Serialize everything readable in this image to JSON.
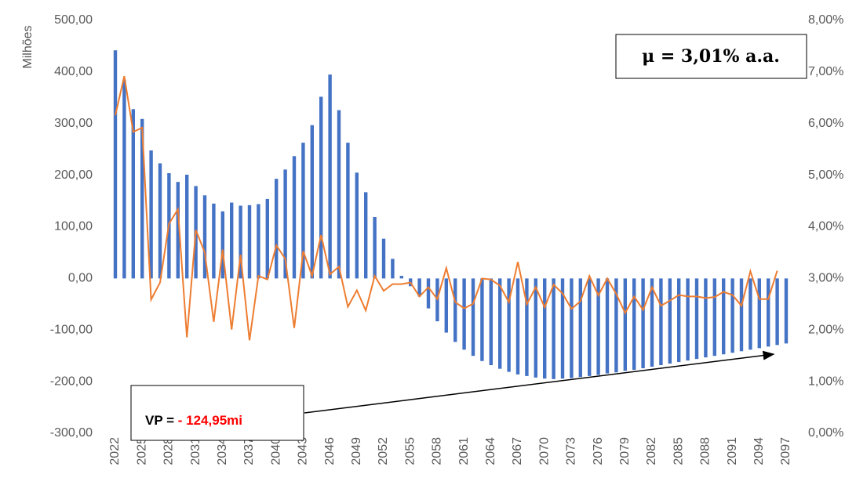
{
  "chart_data": {
    "type": "bar-line",
    "y_label": "Milhões",
    "categories": [
      "2022",
      null,
      null,
      "2025",
      null,
      null,
      "2028",
      null,
      null,
      "2031",
      null,
      null,
      "2034",
      null,
      null,
      "2037",
      null,
      null,
      "2040",
      null,
      null,
      "2043",
      null,
      null,
      "2046",
      null,
      null,
      "2049",
      null,
      null,
      "2052",
      null,
      null,
      "2055",
      null,
      null,
      "2058",
      null,
      null,
      "2061",
      null,
      null,
      "2064",
      null,
      null,
      "2067",
      null,
      null,
      "2070",
      null,
      null,
      "2073",
      null,
      null,
      "2076",
      null,
      null,
      "2079",
      null,
      null,
      "2082",
      null,
      null,
      "2085",
      null,
      null,
      "2088",
      null,
      null,
      "2091",
      null,
      null,
      "2094",
      null,
      null,
      "2097"
    ],
    "series": [
      {
        "type": "bar",
        "color": "#4472c4",
        "values": [
          442,
          385,
          328,
          309,
          248,
          223,
          204,
          187,
          201,
          179,
          161,
          145,
          130,
          147,
          141,
          142,
          144,
          154,
          193,
          211,
          237,
          263,
          297,
          352,
          395,
          326,
          263,
          205,
          167,
          119,
          77,
          38,
          5,
          -15,
          -35,
          -58,
          -83,
          -105,
          -123,
          -138,
          -150,
          -160,
          -168,
          -175,
          -181,
          -186,
          -189,
          -192,
          -194,
          -195,
          -194,
          -193,
          -191,
          -189,
          -187,
          -184,
          -182,
          -179,
          -177,
          -174,
          -171,
          -168,
          -165,
          -162,
          -159,
          -156,
          -153,
          -150,
          -147,
          -144,
          -141,
          -138,
          -135,
          -132,
          -129,
          -126
        ]
      },
      {
        "type": "line",
        "axis": "y2",
        "color": "#ed7d31",
        "values": [
          6.16,
          6.92,
          5.84,
          5.92,
          2.59,
          2.92,
          4.06,
          4.34,
          1.86,
          3.94,
          3.5,
          2.16,
          3.56,
          2.01,
          3.46,
          1.8,
          3.05,
          2.98,
          3.64,
          3.38,
          2.04,
          3.53,
          3.05,
          3.84,
          3.08,
          3.23,
          2.45,
          2.77,
          2.38,
          3.05,
          2.76,
          2.89,
          2.89,
          2.92,
          2.65,
          2.83,
          2.6,
          3.2,
          2.54,
          2.42,
          2.51,
          3.0,
          2.98,
          2.86,
          2.54,
          3.32,
          2.5,
          2.83,
          2.44,
          2.88,
          2.71,
          2.41,
          2.56,
          3.05,
          2.67,
          3.0,
          2.7,
          2.33,
          2.65,
          2.39,
          2.83,
          2.47,
          2.57,
          2.68,
          2.65,
          2.65,
          2.62,
          2.64,
          2.74,
          2.68,
          2.47,
          3.14,
          2.6,
          2.6,
          3.15,
          null
        ]
      }
    ],
    "ylim": [
      -300,
      500
    ],
    "yticks": [
      {
        "value": -300,
        "label": "-300,00"
      },
      {
        "value": -200,
        "label": "-200,00"
      },
      {
        "value": -100,
        "label": "-100,00"
      },
      {
        "value": 0,
        "label": "0,00"
      },
      {
        "value": 100,
        "label": "100,00"
      },
      {
        "value": 200,
        "label": "200,00"
      },
      {
        "value": 300,
        "label": "300,00"
      },
      {
        "value": 400,
        "label": "400,00"
      },
      {
        "value": 500,
        "label": "500,00"
      }
    ],
    "y2lim": [
      0,
      8
    ],
    "y2ticks": [
      {
        "value": 0,
        "label": "0,00%"
      },
      {
        "value": 1,
        "label": "1,00%"
      },
      {
        "value": 2,
        "label": "2,00%"
      },
      {
        "value": 3,
        "label": "3,00%"
      },
      {
        "value": 4,
        "label": "4,00%"
      },
      {
        "value": 5,
        "label": "5,00%"
      },
      {
        "value": 6,
        "label": "6,00%"
      },
      {
        "value": 7,
        "label": "7,00%"
      },
      {
        "value": 8,
        "label": "8,00%"
      }
    ],
    "annotations": [
      "μ = 3,01% a.a.",
      "VP =",
      "- 124,95mi"
    ]
  }
}
